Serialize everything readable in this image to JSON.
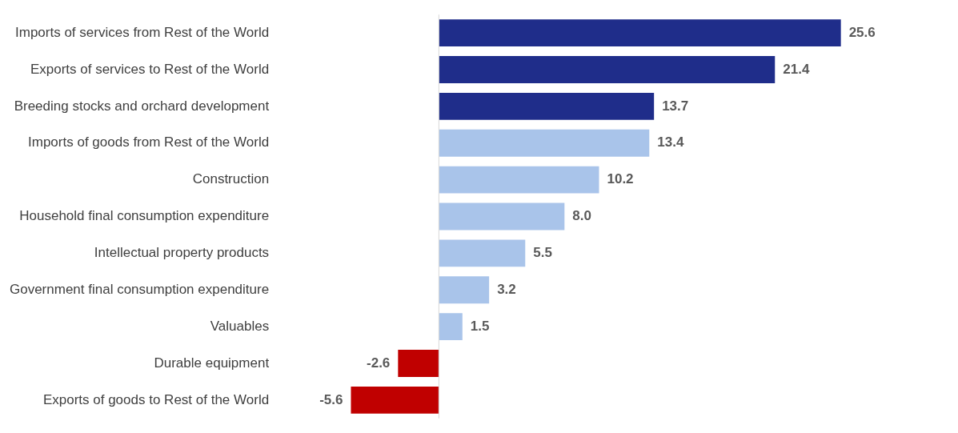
{
  "chart_data": {
    "type": "bar",
    "orientation": "horizontal",
    "categories": [
      "Imports of services from Rest of the World",
      "Exports of services to Rest of the World",
      "Breeding stocks and orchard development",
      "Imports of goods from Rest of the World",
      "Construction",
      "Household final consumption expenditure",
      "Intellectual property products",
      "Government final consumption expenditure",
      "Valuables",
      "Durable equipment",
      "Exports of goods to Rest of the World"
    ],
    "values": [
      25.6,
      21.4,
      13.7,
      13.4,
      10.2,
      8.0,
      5.5,
      3.2,
      1.5,
      -2.6,
      -5.6
    ],
    "colors": [
      "#1f2d8a",
      "#1f2d8a",
      "#1f2d8a",
      "#a9c4ea",
      "#a9c4ea",
      "#a9c4ea",
      "#a9c4ea",
      "#a9c4ea",
      "#a9c4ea",
      "#c00000",
      "#c00000"
    ],
    "value_labels": [
      "25.6",
      "21.4",
      "13.7",
      "13.4",
      "10.2",
      "8.0",
      "5.5",
      "3.2",
      "1.5",
      "-2.6",
      "-5.6"
    ],
    "tick_labels": "y",
    "legend": false
  }
}
